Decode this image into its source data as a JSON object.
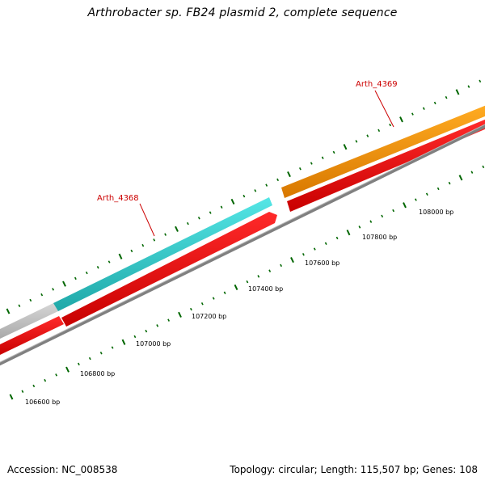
{
  "title": "Arthrobacter sp. FB24 plasmid 2, complete sequence",
  "footer": {
    "accession": "Accession: NC_008538",
    "summary": "Topology: circular; Length: 115,507 bp; Genes: 108"
  },
  "colors": {
    "gene_label": "#cc0000",
    "cds_forward": "#ff0000",
    "gene_cyan": "#33cccc",
    "gene_orange": "#ff9900",
    "gene_gray": "#c0c0c0",
    "backbone": "#808080",
    "tick": "#006600"
  },
  "genes": [
    {
      "name": "Arth_4368",
      "color": "cyan"
    },
    {
      "name": "Arth_4369",
      "color": "orange"
    }
  ],
  "scale": {
    "labels": [
      "106600 bp",
      "106800 bp",
      "107000 bp",
      "107200 bp",
      "107400 bp",
      "107600 bp",
      "107800 bp",
      "108000 bp"
    ]
  }
}
